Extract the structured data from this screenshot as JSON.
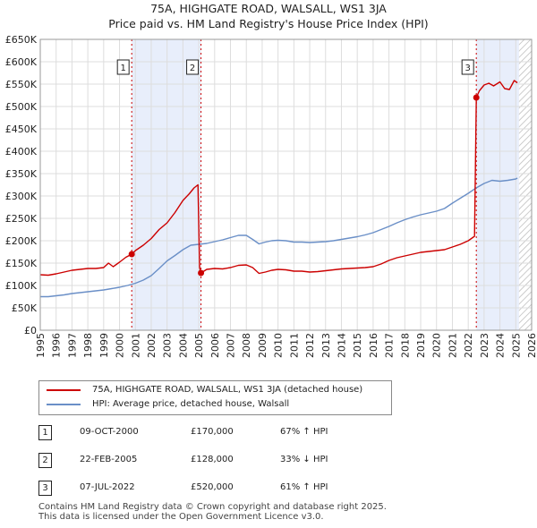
{
  "title_line1": "75A, HIGHGATE ROAD, WALSALL, WS1 3JA",
  "title_line2": "Price paid vs. HM Land Registry's House Price Index (HPI)",
  "colors": {
    "property": "#cc0000",
    "hpi": "#6a8fc7",
    "shade": "#e8eefb",
    "hatch": "#cccccc"
  },
  "chart_data": {
    "type": "line",
    "title": "75A, HIGHGATE ROAD, WALSALL, WS1 3JA — Price paid vs. HM Land Registry's House Price Index (HPI)",
    "xlim": [
      1995,
      2026
    ],
    "ylim": [
      0,
      650000
    ],
    "x_ticks": [
      1995,
      1996,
      1997,
      1998,
      1999,
      2000,
      2001,
      2002,
      2003,
      2004,
      2005,
      2006,
      2007,
      2008,
      2009,
      2010,
      2011,
      2012,
      2013,
      2014,
      2015,
      2016,
      2017,
      2018,
      2019,
      2020,
      2021,
      2022,
      2023,
      2024,
      2025,
      2026
    ],
    "y_ticks": [
      {
        "value": 0,
        "label": "£0"
      },
      {
        "value": 50000,
        "label": "£50K"
      },
      {
        "value": 100000,
        "label": "£100K"
      },
      {
        "value": 150000,
        "label": "£150K"
      },
      {
        "value": 200000,
        "label": "£200K"
      },
      {
        "value": 250000,
        "label": "£250K"
      },
      {
        "value": 300000,
        "label": "£300K"
      },
      {
        "value": 350000,
        "label": "£350K"
      },
      {
        "value": 400000,
        "label": "£400K"
      },
      {
        "value": 450000,
        "label": "£450K"
      },
      {
        "value": 500000,
        "label": "£500K"
      },
      {
        "value": 550000,
        "label": "£550K"
      },
      {
        "value": 600000,
        "label": "£600K"
      },
      {
        "value": 650000,
        "label": "£650K"
      }
    ],
    "grid": true,
    "shaded_spans": [
      [
        2000.77,
        2005.14
      ],
      [
        2022.51,
        2025.2
      ]
    ],
    "hatched_span": [
      2025.2,
      2026
    ],
    "series": [
      {
        "name": "75A, HIGHGATE ROAD, WALSALL, WS1 3JA (detached house)",
        "color": "#cc0000",
        "x": [
          1995,
          1995.5,
          1996,
          1996.5,
          1997,
          1997.5,
          1998,
          1998.5,
          1999,
          1999.3,
          1999.6,
          2000,
          2000.4,
          2000.77,
          2001,
          2001.5,
          2002,
          2002.5,
          2003,
          2003.5,
          2004,
          2004.4,
          2004.7,
          2004.95,
          2005.05,
          2005.14,
          2005.5,
          2006,
          2006.5,
          2007,
          2007.5,
          2008,
          2008.4,
          2008.8,
          2009.2,
          2009.6,
          2010,
          2010.5,
          2011,
          2011.5,
          2012,
          2012.5,
          2013,
          2013.5,
          2014,
          2014.5,
          2015,
          2015.5,
          2016,
          2016.5,
          2017,
          2017.5,
          2018,
          2018.5,
          2019,
          2019.5,
          2020,
          2020.5,
          2021,
          2021.5,
          2022,
          2022.4,
          2022.51,
          2022.7,
          2023,
          2023.3,
          2023.6,
          2024,
          2024.3,
          2024.6,
          2024.9,
          2025.1
        ],
        "values": [
          124000,
          123000,
          126000,
          130000,
          134000,
          136000,
          138000,
          138000,
          140000,
          150000,
          142000,
          152000,
          163000,
          170000,
          178000,
          190000,
          205000,
          225000,
          240000,
          263000,
          290000,
          305000,
          318000,
          325000,
          140000,
          128000,
          136000,
          138000,
          137000,
          140000,
          145000,
          146000,
          140000,
          127000,
          130000,
          134000,
          136000,
          135000,
          132000,
          132000,
          130000,
          131000,
          133000,
          135000,
          137000,
          138000,
          139000,
          140000,
          142000,
          148000,
          156000,
          162000,
          166000,
          170000,
          174000,
          176000,
          178000,
          180000,
          186000,
          192000,
          200000,
          210000,
          520000,
          535000,
          548000,
          552000,
          546000,
          555000,
          540000,
          538000,
          558000,
          553000
        ]
      },
      {
        "name": "HPI: Average price, detached house, Walsall",
        "color": "#6a8fc7",
        "x": [
          1995,
          1995.5,
          1996,
          1996.5,
          1997,
          1997.5,
          1998,
          1998.5,
          1999,
          1999.5,
          2000,
          2000.5,
          2001,
          2001.5,
          2002,
          2002.5,
          2003,
          2003.5,
          2004,
          2004.5,
          2005,
          2005.5,
          2006,
          2006.5,
          2007,
          2007.5,
          2008,
          2008.4,
          2008.8,
          2009.2,
          2009.6,
          2010,
          2010.5,
          2011,
          2011.5,
          2012,
          2012.5,
          2013,
          2013.5,
          2014,
          2014.5,
          2015,
          2015.5,
          2016,
          2016.5,
          2017,
          2017.5,
          2018,
          2018.5,
          2019,
          2019.5,
          2020,
          2020.5,
          2021,
          2021.5,
          2022,
          2022.5,
          2023,
          2023.5,
          2024,
          2024.5,
          2025,
          2025.1
        ],
        "values": [
          75000,
          75000,
          77000,
          79000,
          82000,
          84000,
          86000,
          88000,
          90000,
          93000,
          96000,
          100000,
          105000,
          112000,
          122000,
          138000,
          155000,
          167000,
          180000,
          190000,
          192000,
          194000,
          198000,
          202000,
          207000,
          212000,
          212000,
          203000,
          193000,
          197000,
          200000,
          201000,
          200000,
          197000,
          197000,
          196000,
          197000,
          198000,
          200000,
          203000,
          206000,
          209000,
          213000,
          218000,
          225000,
          232000,
          240000,
          247000,
          253000,
          258000,
          262000,
          266000,
          272000,
          284000,
          295000,
          306000,
          318000,
          328000,
          335000,
          333000,
          335000,
          338000,
          340000
        ]
      }
    ],
    "markers": [
      {
        "id": "1",
        "x": 2000.77,
        "y": 170000
      },
      {
        "id": "2",
        "x": 2005.14,
        "y": 128000
      },
      {
        "id": "3",
        "x": 2022.51,
        "y": 520000
      }
    ]
  },
  "legend": {
    "property": "75A, HIGHGATE ROAD, WALSALL, WS1 3JA (detached house)",
    "hpi": "HPI: Average price, detached house, Walsall"
  },
  "transactions": [
    {
      "id": "1",
      "date": "09-OCT-2000",
      "price": "£170,000",
      "hpi": "67% ↑ HPI"
    },
    {
      "id": "2",
      "date": "22-FEB-2005",
      "price": "£128,000",
      "hpi": "33% ↓ HPI"
    },
    {
      "id": "3",
      "date": "07-JUL-2022",
      "price": "£520,000",
      "hpi": "61% ↑ HPI"
    }
  ],
  "footer": {
    "line1": "Contains HM Land Registry data © Crown copyright and database right 2025.",
    "line2": "This data is licensed under the Open Government Licence v3.0."
  }
}
